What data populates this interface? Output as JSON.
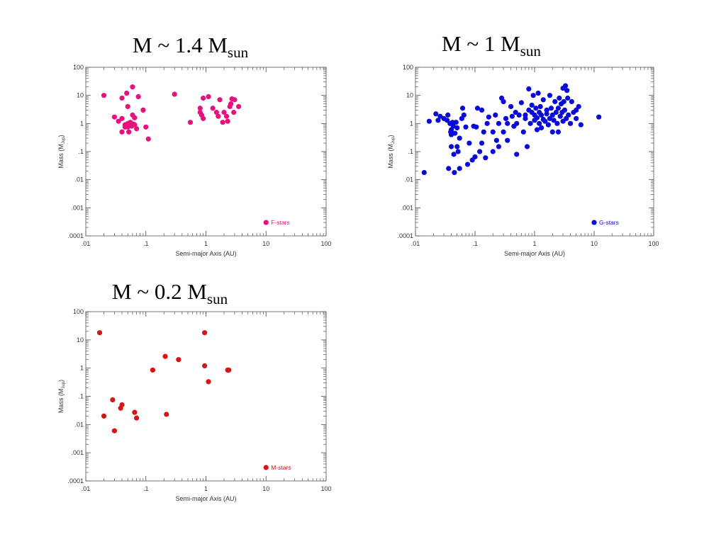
{
  "panels": [
    {
      "title_main": "M ~ 1.4 M",
      "title_sub": "sun",
      "legend": "F-stars",
      "color": "#e8107f"
    },
    {
      "title_main": "M ~ 1 M",
      "title_sub": "sun",
      "legend": "G-stars",
      "color": "#0a0ad8"
    },
    {
      "title_main": "M ~ 0.2 M",
      "title_sub": "sun",
      "legend": "M-stars",
      "color": "#d91414"
    }
  ],
  "chart_data": [
    {
      "type": "scatter",
      "xscale": "log",
      "yscale": "log",
      "xlim": [
        0.01,
        100
      ],
      "ylim": [
        0.0001,
        100
      ],
      "xlabel": "Semi-major Axis (AU)",
      "ylabel": "Mass (M",
      "ylabel_sub": "Jup",
      "ylabel_end": ")",
      "xtick_labels": [
        ".01",
        ".1",
        "1",
        "10",
        "100"
      ],
      "ytick_labels": [
        ".0001",
        ".001",
        ".01",
        ".1",
        "1",
        "10",
        "100"
      ],
      "legend_position": "bottom-right",
      "series": [
        {
          "name": "F-stars",
          "points": [
            [
              0.02,
              10
            ],
            [
              0.03,
              1.7
            ],
            [
              0.035,
              1.2
            ],
            [
              0.04,
              8
            ],
            [
              0.04,
              1.5
            ],
            [
              0.04,
              0.5
            ],
            [
              0.045,
              0.9
            ],
            [
              0.045,
              0.75
            ],
            [
              0.048,
              12
            ],
            [
              0.05,
              4
            ],
            [
              0.05,
              1
            ],
            [
              0.05,
              0.75
            ],
            [
              0.052,
              0.5
            ],
            [
              0.055,
              1.1
            ],
            [
              0.058,
              0.8
            ],
            [
              0.06,
              2
            ],
            [
              0.06,
              20
            ],
            [
              0.062,
              0.95
            ],
            [
              0.065,
              0.9
            ],
            [
              0.065,
              1.6
            ],
            [
              0.07,
              0.65
            ],
            [
              0.075,
              9
            ],
            [
              0.09,
              3
            ],
            [
              0.1,
              0.75
            ],
            [
              0.11,
              0.28
            ],
            [
              0.3,
              11
            ],
            [
              0.55,
              1.1
            ],
            [
              0.8,
              3.5
            ],
            [
              0.8,
              2.5
            ],
            [
              0.85,
              2
            ],
            [
              0.9,
              1.5
            ],
            [
              0.9,
              8
            ],
            [
              1.1,
              9
            ],
            [
              1.3,
              3.5
            ],
            [
              1.5,
              2.5
            ],
            [
              1.6,
              1.8
            ],
            [
              1.7,
              7
            ],
            [
              1.9,
              1.1
            ],
            [
              2.0,
              2.5
            ],
            [
              2.2,
              1.8
            ],
            [
              2.3,
              1.2
            ],
            [
              2.5,
              4
            ],
            [
              2.6,
              5
            ],
            [
              2.7,
              7.5
            ],
            [
              2.9,
              2.5
            ],
            [
              3.0,
              7
            ],
            [
              3.5,
              4
            ]
          ]
        }
      ]
    },
    {
      "type": "scatter",
      "xscale": "log",
      "yscale": "log",
      "xlim": [
        0.01,
        100
      ],
      "ylim": [
        0.0001,
        100
      ],
      "xlabel": "Semi-major Axis (AU)",
      "ylabel": "Mass (M",
      "ylabel_sub": "Jup",
      "ylabel_end": ")",
      "xtick_labels": [
        ".01",
        ".1",
        "1",
        "10",
        "100"
      ],
      "ytick_labels": [
        ".0001",
        ".001",
        ".01",
        ".1",
        "1",
        "10",
        "100"
      ],
      "legend_position": "bottom-right",
      "series": [
        {
          "name": "G-stars",
          "points": [
            [
              0.014,
              0.018
            ],
            [
              0.017,
              1.2
            ],
            [
              0.022,
              2.2
            ],
            [
              0.024,
              1.3
            ],
            [
              0.026,
              1.8
            ],
            [
              0.03,
              1.5
            ],
            [
              0.034,
              1.3
            ],
            [
              0.035,
              2
            ],
            [
              0.036,
              0.025
            ],
            [
              0.038,
              1
            ],
            [
              0.039,
              0.5
            ],
            [
              0.04,
              0.15
            ],
            [
              0.04,
              0.6
            ],
            [
              0.04,
              0.4
            ],
            [
              0.042,
              1.1
            ],
            [
              0.043,
              0.8
            ],
            [
              0.044,
              0.08
            ],
            [
              0.045,
              0.018
            ],
            [
              0.046,
              0.45
            ],
            [
              0.048,
              1.1
            ],
            [
              0.05,
              0.15
            ],
            [
              0.05,
              0.7
            ],
            [
              0.052,
              0.1
            ],
            [
              0.055,
              0.3
            ],
            [
              0.055,
              0.025
            ],
            [
              0.06,
              1.5
            ],
            [
              0.062,
              3.5
            ],
            [
              0.065,
              2
            ],
            [
              0.07,
              0.75
            ],
            [
              0.075,
              0.035
            ],
            [
              0.08,
              0.2
            ],
            [
              0.09,
              0.05
            ],
            [
              0.095,
              0.8
            ],
            [
              0.1,
              0.065
            ],
            [
              0.105,
              0.75
            ],
            [
              0.11,
              3.5
            ],
            [
              0.12,
              0.1
            ],
            [
              0.13,
              0.2
            ],
            [
              0.13,
              3
            ],
            [
              0.14,
              0.5
            ],
            [
              0.15,
              0.06
            ],
            [
              0.16,
              1
            ],
            [
              0.17,
              1.7
            ],
            [
              0.2,
              0.1
            ],
            [
              0.2,
              0.5
            ],
            [
              0.22,
              2
            ],
            [
              0.23,
              0.25
            ],
            [
              0.25,
              0.15
            ],
            [
              0.25,
              1
            ],
            [
              0.28,
              8
            ],
            [
              0.3,
              0.5
            ],
            [
              0.3,
              6
            ],
            [
              0.33,
              1.5
            ],
            [
              0.35,
              0.25
            ],
            [
              0.35,
              1
            ],
            [
              0.4,
              4
            ],
            [
              0.42,
              1.8
            ],
            [
              0.45,
              0.8
            ],
            [
              0.48,
              2.5
            ],
            [
              0.5,
              1
            ],
            [
              0.5,
              0.08
            ],
            [
              0.55,
              2
            ],
            [
              0.6,
              5.5
            ],
            [
              0.65,
              0.5
            ],
            [
              0.7,
              1.5
            ],
            [
              0.7,
              2
            ],
            [
              0.75,
              0.15
            ],
            [
              0.8,
              3
            ],
            [
              0.8,
              17
            ],
            [
              0.85,
              1
            ],
            [
              0.9,
              2.5
            ],
            [
              0.9,
              4.5
            ],
            [
              0.95,
              10
            ],
            [
              1.0,
              2
            ],
            [
              1.0,
              1.3
            ],
            [
              1.05,
              3.5
            ],
            [
              1.1,
              1.6
            ],
            [
              1.1,
              0.6
            ],
            [
              1.15,
              12
            ],
            [
              1.2,
              1
            ],
            [
              1.2,
              2.5
            ],
            [
              1.25,
              4
            ],
            [
              1.3,
              2
            ],
            [
              1.3,
              0.7
            ],
            [
              1.4,
              1.4
            ],
            [
              1.4,
              7
            ],
            [
              1.5,
              1.2
            ],
            [
              1.6,
              2.2
            ],
            [
              1.6,
              3
            ],
            [
              1.7,
              0.9
            ],
            [
              1.8,
              10
            ],
            [
              1.8,
              1.5
            ],
            [
              1.9,
              3.5
            ],
            [
              2.0,
              2
            ],
            [
              2.0,
              0.5
            ],
            [
              2.1,
              1.3
            ],
            [
              2.2,
              6
            ],
            [
              2.3,
              2.5
            ],
            [
              2.4,
              1
            ],
            [
              2.5,
              3.5
            ],
            [
              2.5,
              0.5
            ],
            [
              2.6,
              8
            ],
            [
              2.7,
              1.8
            ],
            [
              2.8,
              5
            ],
            [
              2.9,
              2.5
            ],
            [
              3.0,
              1.2
            ],
            [
              3.0,
              18
            ],
            [
              3.1,
              6
            ],
            [
              3.2,
              3
            ],
            [
              3.3,
              22
            ],
            [
              3.4,
              1.5
            ],
            [
              3.5,
              15
            ],
            [
              3.6,
              8
            ],
            [
              3.7,
              2
            ],
            [
              4.0,
              1
            ],
            [
              4.2,
              6
            ],
            [
              4.5,
              2.5
            ],
            [
              5,
              3
            ],
            [
              5,
              1.5
            ],
            [
              5.5,
              4
            ],
            [
              6,
              0.9
            ],
            [
              12,
              1.7
            ]
          ]
        }
      ]
    },
    {
      "type": "scatter",
      "xscale": "log",
      "yscale": "log",
      "xlim": [
        0.01,
        100
      ],
      "ylim": [
        0.0001,
        100
      ],
      "xlabel": "Semi-major Axis (AU)",
      "ylabel": "Mass (M",
      "ylabel_sub": "Jup",
      "ylabel_end": ")",
      "xtick_labels": [
        ".01",
        ".1",
        "1",
        "10",
        "100"
      ],
      "ytick_labels": [
        ".0001",
        ".001",
        ".01",
        ".1",
        "1",
        "10",
        "100"
      ],
      "legend_position": "bottom-right",
      "series": [
        {
          "name": "M-stars",
          "points": [
            [
              0.017,
              18
            ],
            [
              0.02,
              0.02
            ],
            [
              0.028,
              0.075
            ],
            [
              0.03,
              0.006
            ],
            [
              0.038,
              0.038
            ],
            [
              0.04,
              0.05
            ],
            [
              0.065,
              0.027
            ],
            [
              0.07,
              0.017
            ],
            [
              0.13,
              0.85
            ],
            [
              0.21,
              2.6
            ],
            [
              0.22,
              0.023
            ],
            [
              0.35,
              2
            ],
            [
              0.95,
              18
            ],
            [
              0.95,
              1.2
            ],
            [
              1.1,
              0.33
            ],
            [
              2.3,
              0.85
            ],
            [
              2.4,
              0.85
            ]
          ]
        }
      ]
    }
  ]
}
